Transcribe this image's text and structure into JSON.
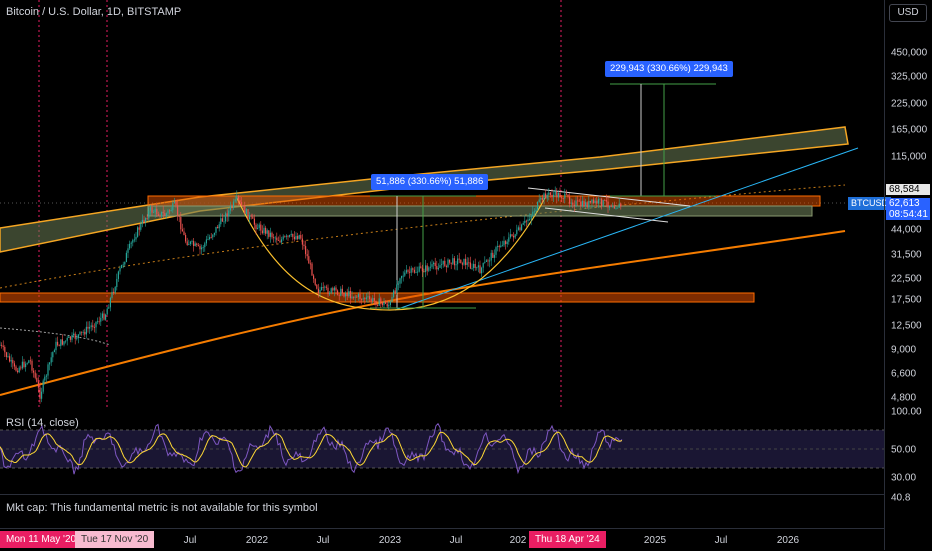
{
  "header": {
    "title": "Bitcoin / U.S. Dollar, 1D, BITSTAMP"
  },
  "price_axis": {
    "currency_button": "USD",
    "labels": [
      "450,000",
      "325,000",
      "225,000",
      "165,000",
      "115,000",
      "44,000",
      "31,500",
      "22,500",
      "17,500",
      "12,500",
      "9,000",
      "6,600",
      "4,800"
    ],
    "badges": [
      {
        "value": "68,584",
        "color": "#e8e8e8",
        "text_color": "#000"
      },
      {
        "value": "62,613",
        "color": "#2962ff",
        "text_color": "#fff"
      },
      {
        "value": "08:54:41",
        "color": "#2962ff",
        "text_color": "#fff"
      }
    ],
    "symbol_tag": "BTCUSD",
    "rsi_labels": [
      "100.00",
      "50.00",
      "30.00",
      "40.8"
    ]
  },
  "measurements": [
    {
      "text": "51,886 (330.66%) 51,886"
    },
    {
      "text": "229,943 (330.66%) 229,943"
    }
  ],
  "rsi": {
    "title": "RSI (14, close)"
  },
  "fundamental": {
    "text": "Mkt cap: This fundamental metric is not available for this symbol"
  },
  "time_axis": {
    "badges": [
      {
        "text": "Mon 11 May '20",
        "color": "#e91e63"
      },
      {
        "text": "Tue 17 Nov '20",
        "color": "#f48fb1"
      },
      {
        "text": "Thu 18 Apr '24",
        "color": "#e91e63"
      }
    ],
    "labels": [
      "Jul",
      "2022",
      "Jul",
      "2023",
      "Jul",
      "202",
      "2025",
      "Jul",
      "2026"
    ]
  },
  "colors": {
    "candle_up": "#26a69a",
    "candle_down": "#ef5350",
    "rsi_line": "#7e57c2",
    "rsi_ma": "#fdd835",
    "channel": "#f5a623",
    "trend_blue": "#29b6f6",
    "event_line": "#e91e63"
  }
}
